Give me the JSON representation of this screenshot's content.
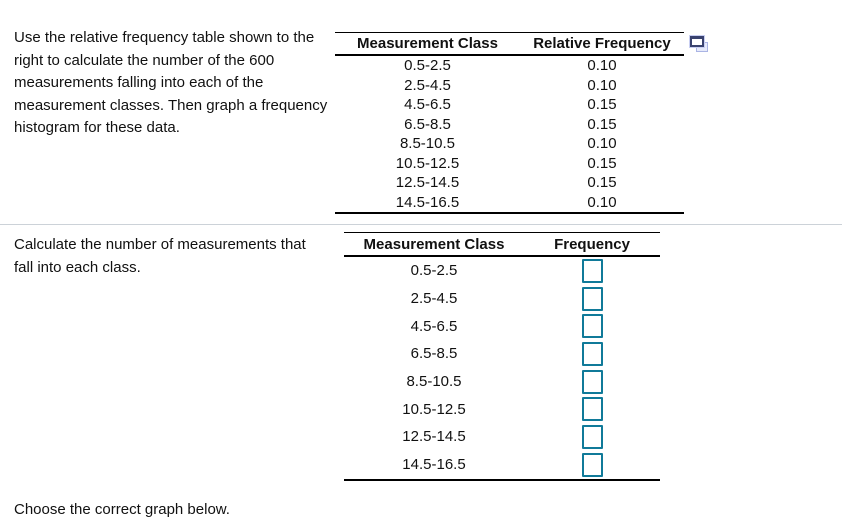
{
  "problem": {
    "statement": "Use the relative frequency table shown to the right to calculate the number of the 600 measurements falling into each of the measurement classes. Then graph a frequency histogram for these data.",
    "calculate_prompt": "Calculate the number of measurements that fall into each class.",
    "choose_graph_prompt": "Choose the correct graph below.",
    "total_measurements": "600"
  },
  "rel_freq_table": {
    "headers": {
      "class": "Measurement Class",
      "rel_freq": "Relative Frequency"
    },
    "rows": [
      {
        "class": "0.5-2.5",
        "rel_freq": "0.10"
      },
      {
        "class": "2.5-4.5",
        "rel_freq": "0.10"
      },
      {
        "class": "4.5-6.5",
        "rel_freq": "0.15"
      },
      {
        "class": "6.5-8.5",
        "rel_freq": "0.15"
      },
      {
        "class": "8.5-10.5",
        "rel_freq": "0.10"
      },
      {
        "class": "10.5-12.5",
        "rel_freq": "0.15"
      },
      {
        "class": "12.5-14.5",
        "rel_freq": "0.15"
      },
      {
        "class": "14.5-16.5",
        "rel_freq": "0.10"
      }
    ]
  },
  "freq_table": {
    "headers": {
      "class": "Measurement Class",
      "freq": "Frequency"
    },
    "rows": [
      {
        "class": "0.5-2.5",
        "value": ""
      },
      {
        "class": "2.5-4.5",
        "value": ""
      },
      {
        "class": "4.5-6.5",
        "value": ""
      },
      {
        "class": "6.5-8.5",
        "value": ""
      },
      {
        "class": "8.5-10.5",
        "value": ""
      },
      {
        "class": "10.5-12.5",
        "value": ""
      },
      {
        "class": "12.5-14.5",
        "value": ""
      },
      {
        "class": "14.5-16.5",
        "value": ""
      }
    ]
  },
  "icons": {
    "copy": "copy-question-icon"
  },
  "colors": {
    "input_border": "#107a99",
    "table_border": "#000000",
    "divider": "#ccd2d8",
    "icon_navy": "#39426f",
    "icon_light": "#aab4e4"
  }
}
